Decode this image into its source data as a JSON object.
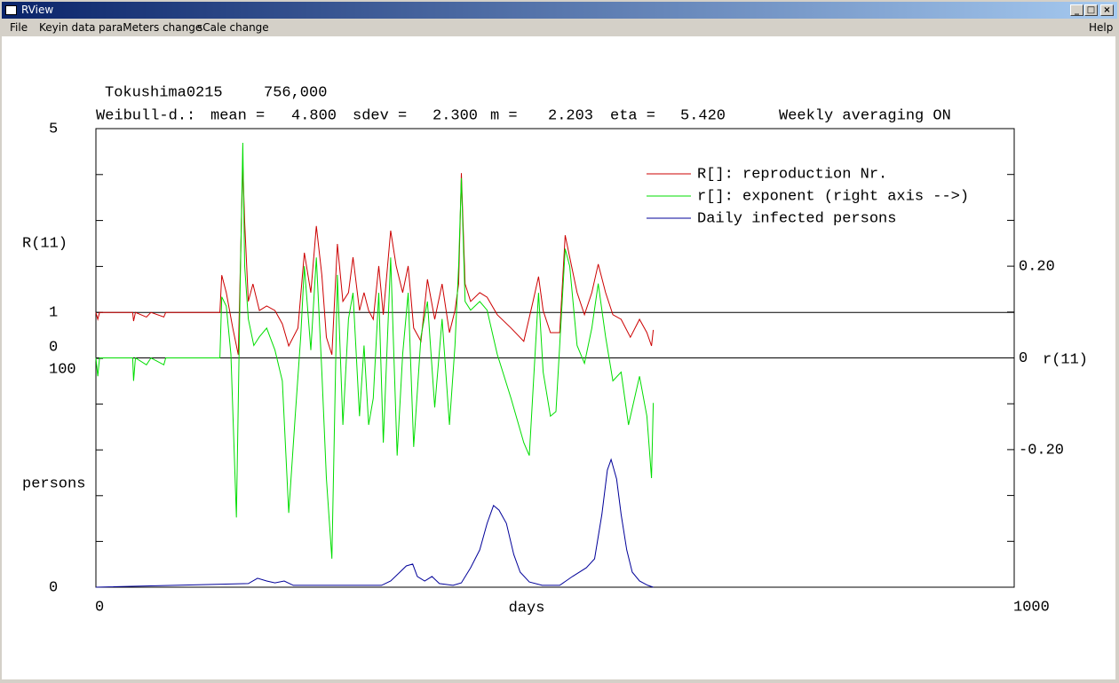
{
  "window": {
    "title": "RView"
  },
  "menu": [
    "File",
    "Keyin data",
    "paraMeters change",
    "sCale change"
  ],
  "help_menu": "Help",
  "header": {
    "region": "Tokushima0215",
    "population": "756,000",
    "distribution": "Weibull-d.:",
    "parameters": [
      {
        "label": "mean =",
        "value": "4.800"
      },
      {
        "label": "sdev =",
        "value": "2.300"
      },
      {
        "label": "m =",
        "value": "2.203"
      },
      {
        "label": "eta =",
        "value": "5.420"
      }
    ],
    "averaging": "Weekly averaging ON"
  },
  "chart_data": {
    "type": "line",
    "xlabel": "days",
    "ylabel": "R(11)",
    "y2label": "r(11)",
    "y3label": "persons",
    "xlim": [
      0,
      1000
    ],
    "xticks": [
      0,
      1000
    ],
    "ylim": [
      0,
      5
    ],
    "yticks": [
      0,
      1,
      5
    ],
    "yticks_minor": [
      2,
      3,
      4
    ],
    "y2lim": [
      -0.5,
      0.5
    ],
    "y2ticks": [
      {
        "value": -0.2,
        "label": "-0.20"
      },
      0,
      {
        "value": 0.2,
        "label": "0.20"
      }
    ],
    "y2ticks_minor": [
      -0.5,
      -0.4,
      -0.3,
      -0.1,
      0.1,
      0.3,
      0.4,
      0.5
    ],
    "y3lim": [
      0,
      100
    ],
    "y3ticks": [
      0,
      100
    ],
    "y3ticks_minor": [
      20,
      40,
      60,
      80
    ],
    "reference_lines": [
      {
        "axis": "y",
        "value": 1
      },
      {
        "axis": "y2",
        "value": 0
      }
    ],
    "legend": "top-right",
    "series": [
      {
        "name": "R[]: reproduction Nr.",
        "color": "#cc0000",
        "axis": "y",
        "x": [
          0,
          2,
          4,
          40,
          41,
          43,
          55,
          60,
          74,
          76,
          135,
          137,
          142,
          149,
          155,
          160,
          162,
          166,
          171,
          178,
          186,
          195,
          203,
          210,
          220,
          227,
          234,
          240,
          246,
          251,
          257,
          263,
          269,
          275,
          280,
          287,
          292,
          297,
          302,
          308,
          313,
          321,
          327,
          334,
          340,
          346,
          354,
          361,
          369,
          377,
          385,
          391,
          395,
          398,
          402,
          408,
          418,
          426,
          437,
          452,
          466,
          476,
          482,
          487,
          495,
          505,
          511,
          516,
          524,
          532,
          540,
          547,
          555,
          563,
          572,
          582,
          592,
          600,
          605,
          607
        ],
        "values": [
          1.0,
          0.85,
          1.0,
          1.0,
          0.81,
          1.0,
          0.9,
          1.0,
          0.9,
          1.0,
          1.0,
          1.81,
          1.43,
          0.66,
          0.08,
          4.23,
          2.97,
          1.24,
          1.62,
          1.04,
          1.14,
          1.04,
          0.75,
          0.27,
          0.66,
          2.3,
          1.43,
          2.88,
          1.81,
          0.46,
          0.08,
          2.49,
          1.24,
          1.43,
          2.2,
          1.04,
          1.43,
          1.04,
          0.85,
          2.01,
          0.95,
          2.78,
          2.01,
          1.43,
          2.01,
          0.66,
          0.37,
          1.72,
          0.85,
          1.62,
          0.56,
          1.04,
          1.62,
          4.03,
          1.62,
          1.24,
          1.43,
          1.33,
          0.95,
          0.66,
          0.37,
          1.24,
          1.78,
          1.04,
          0.56,
          0.56,
          2.68,
          2.2,
          1.43,
          0.95,
          1.43,
          2.05,
          1.43,
          0.95,
          0.85,
          0.46,
          0.85,
          0.56,
          0.27,
          0.62
        ]
      },
      {
        "name": "r[]: exponent (right axis -->)",
        "color": "#00dd00",
        "axis": "y2",
        "x": [
          0,
          2,
          4,
          40,
          41,
          43,
          55,
          60,
          74,
          76,
          135,
          137,
          142,
          147,
          153,
          157,
          160,
          162,
          166,
          172,
          178,
          186,
          195,
          203,
          210,
          217,
          223,
          227,
          234,
          240,
          246,
          251,
          257,
          263,
          269,
          275,
          280,
          287,
          292,
          297,
          302,
          308,
          313,
          321,
          328,
          334,
          340,
          346,
          354,
          361,
          369,
          377,
          385,
          391,
          395,
          398,
          402,
          408,
          418,
          426,
          437,
          452,
          466,
          472,
          482,
          487,
          495,
          501,
          511,
          516,
          524,
          532,
          540,
          547,
          555,
          563,
          572,
          580,
          592,
          600,
          605,
          607
        ],
        "values": [
          0,
          -0.04,
          0,
          0,
          -0.05,
          0,
          -0.015,
          0,
          -0.015,
          0,
          0,
          0.133,
          0.113,
          0.008,
          -0.348,
          0.142,
          0.469,
          0.2,
          0.085,
          0.027,
          0.046,
          0.065,
          0.017,
          -0.05,
          -0.338,
          -0.127,
          0.046,
          0.2,
          0.017,
          0.219,
          -0.031,
          -0.262,
          -0.438,
          0.181,
          -0.146,
          0.085,
          0.142,
          -0.127,
          0.027,
          -0.146,
          -0.088,
          0.142,
          -0.185,
          0.219,
          -0.213,
          0.008,
          0.142,
          -0.194,
          0.046,
          0.123,
          -0.108,
          0.085,
          -0.146,
          0.027,
          0.2,
          0.392,
          0.123,
          0.104,
          0.123,
          0.104,
          0.008,
          -0.088,
          -0.185,
          -0.213,
          0.142,
          -0.031,
          -0.127,
          -0.117,
          0.238,
          0.2,
          0.027,
          -0.012,
          0.065,
          0.162,
          0.046,
          -0.05,
          -0.031,
          -0.146,
          -0.04,
          -0.127,
          -0.262,
          -0.098
        ]
      },
      {
        "name": "Daily infected persons",
        "color": "#000099",
        "axis": "y3",
        "x": [
          0,
          166,
          176,
          186,
          195,
          205,
          215,
          224,
          282,
          311,
          321,
          331,
          338,
          345,
          350,
          358,
          366,
          374,
          389,
          398,
          408,
          418,
          426,
          433,
          439,
          447,
          455,
          462,
          472,
          486,
          505,
          519,
          534,
          543,
          551,
          557,
          561,
          567,
          572,
          578,
          584,
          592,
          601,
          607
        ],
        "values": [
          0,
          1.6,
          3.9,
          2.7,
          1.9,
          2.7,
          0.8,
          0.8,
          0.8,
          0.8,
          2.7,
          6.6,
          9.3,
          10.1,
          4.7,
          2.7,
          4.7,
          1.6,
          0.8,
          1.9,
          8.5,
          16.3,
          27.9,
          35.7,
          33.7,
          27.9,
          14.3,
          6.6,
          2.3,
          0.8,
          0.8,
          4.7,
          8.5,
          12.4,
          31.8,
          51.2,
          55.8,
          47.3,
          31.8,
          16.3,
          6.6,
          2.7,
          0.8,
          0
        ]
      }
    ]
  }
}
